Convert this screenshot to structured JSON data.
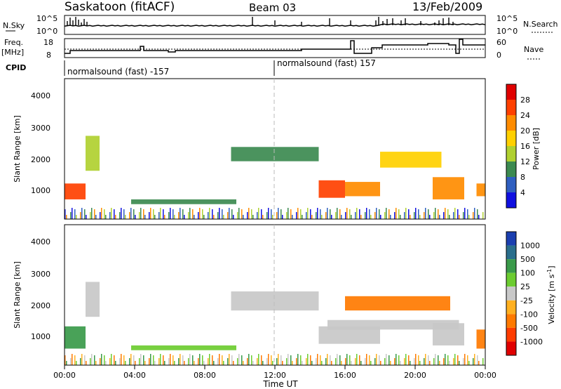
{
  "header": {
    "site": "Saskatoon (fitACF)",
    "beam": "Beam 03",
    "date": "13/Feb/2009"
  },
  "top_panel": {
    "nsky_label": "N.Sky",
    "nsky_ticks": [
      "10^5",
      "10^0"
    ],
    "nsearch_label": "N.Search",
    "right_ticks": [
      "10^5",
      "10^0"
    ]
  },
  "freq_panel": {
    "freq_label": "Freq.",
    "freq_unit": "[MHz]",
    "freq_ticks": [
      "18",
      "8"
    ],
    "nave_label": "Nave",
    "nave_ticks": [
      "60",
      "0"
    ]
  },
  "cpid": {
    "label": "CPID",
    "mode_1": "normalsound (fast) -157",
    "mode_2": "normalsound (fast) 157"
  },
  "power_panel": {
    "ylabel": "Slant Range [km]",
    "y_ticks": [
      "4000",
      "3000",
      "2000",
      "1000"
    ],
    "colorbar_label": "Power [dB]",
    "colorbar_ticks": [
      "28",
      "24",
      "20",
      "16",
      "12",
      "8",
      "4"
    ],
    "colors": [
      "#e00000",
      "#ff4000",
      "#ff8c00",
      "#ffd000",
      "#b0d030",
      "#3c8a50",
      "#2f5fc0",
      "#1010e0"
    ]
  },
  "velocity_panel": {
    "ylabel": "Slant Range [km]",
    "y_ticks": [
      "4000",
      "3000",
      "2000",
      "1000"
    ],
    "colorbar_label": "Velocity [m s",
    "colorbar_sup": "-1",
    "colorbar_label_end": "]",
    "colorbar_ticks": [
      "1000",
      "500",
      "100",
      "25",
      "-25",
      "-100",
      "-500",
      "-1000"
    ],
    "colors": [
      "#1b3fb0",
      "#2a6e8c",
      "#3a9a4a",
      "#6ccc30",
      "#c8c8c8",
      "#ffb020",
      "#ff7a00",
      "#ff3c00",
      "#e00000"
    ]
  },
  "x_axis": {
    "label": "Time UT",
    "ticks": [
      "00:00",
      "04:00",
      "08:00",
      "12:00",
      "16:00",
      "20:00",
      "00:00"
    ]
  },
  "chart_data": [
    {
      "type": "heatmap",
      "title": "Saskatoon (fitACF)",
      "quantity": "Power [dB]",
      "xlabel": "Time UT",
      "ylabel": "Slant Range [km]",
      "xlim": [
        "00:00",
        "24:00"
      ],
      "ylim": [
        180,
        4600
      ],
      "color_range": [
        0,
        30
      ],
      "cells": [
        {
          "t": [
            0.0,
            1.2
          ],
          "r": [
            800,
            1300
          ],
          "value": 24
        },
        {
          "t": [
            1.2,
            2.0
          ],
          "r": [
            1700,
            2800
          ],
          "value": 12
        },
        {
          "t": [
            3.8,
            9.8
          ],
          "r": [
            650,
            800
          ],
          "value": 8
        },
        {
          "t": [
            9.5,
            14.5
          ],
          "r": [
            2000,
            2450
          ],
          "value": 10
        },
        {
          "t": [
            14.5,
            16.0
          ],
          "r": [
            850,
            1400
          ],
          "value": 24
        },
        {
          "t": [
            16.0,
            18.0
          ],
          "r": [
            900,
            1350
          ],
          "value": 22
        },
        {
          "t": [
            18.0,
            21.5
          ],
          "r": [
            1800,
            2300
          ],
          "value": 16
        },
        {
          "t": [
            21.0,
            22.8
          ],
          "r": [
            800,
            1500
          ],
          "value": 20
        },
        {
          "t": [
            23.5,
            24.0
          ],
          "r": [
            900,
            1300
          ],
          "value": 22
        }
      ]
    },
    {
      "type": "heatmap",
      "title": "Saskatoon (fitACF)",
      "quantity": "Velocity [m s-1]",
      "xlabel": "Time UT",
      "ylabel": "Slant Range [km]",
      "xlim": [
        "00:00",
        "24:00"
      ],
      "ylim": [
        180,
        4600
      ],
      "color_range": [
        -1000,
        1000
      ],
      "cells": [
        {
          "t": [
            0.0,
            1.2
          ],
          "r": [
            700,
            1400
          ],
          "value": 100
        },
        {
          "t": [
            1.2,
            2.0
          ],
          "r": [
            1700,
            2800
          ],
          "value": 0
        },
        {
          "t": [
            3.8,
            9.8
          ],
          "r": [
            650,
            800
          ],
          "value": 50
        },
        {
          "t": [
            9.5,
            14.5
          ],
          "r": [
            1900,
            2500
          ],
          "value": 0
        },
        {
          "t": [
            14.5,
            18.0
          ],
          "r": [
            850,
            1400
          ],
          "value": -25
        },
        {
          "t": [
            16.0,
            22.0
          ],
          "r": [
            1900,
            2350
          ],
          "value": -300
        },
        {
          "t": [
            15.0,
            22.5
          ],
          "r": [
            1300,
            1600
          ],
          "value": -25
        },
        {
          "t": [
            21.0,
            22.8
          ],
          "r": [
            800,
            1500
          ],
          "value": 0
        },
        {
          "t": [
            23.5,
            24.0
          ],
          "r": [
            700,
            1300
          ],
          "value": -200
        }
      ]
    }
  ]
}
